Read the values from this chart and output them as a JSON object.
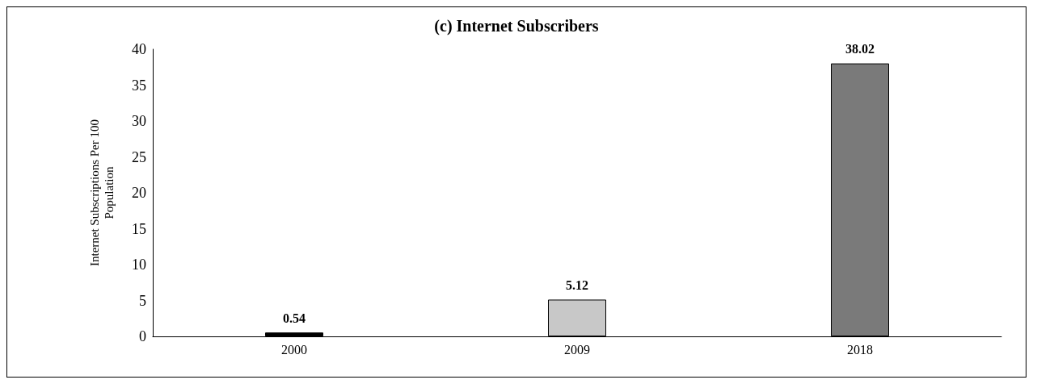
{
  "chart_data": {
    "type": "bar",
    "title": "(c) Internet Subscribers",
    "ylabel": "Internet Subscriptions Per 100\nPopulation",
    "categories": [
      "2000",
      "2009",
      "2018"
    ],
    "values": [
      0.54,
      5.12,
      38.02
    ],
    "colors": [
      "#000000",
      "#c8c8c8",
      "#7a7a7a"
    ],
    "ylim": [
      0,
      40
    ],
    "yticks": [
      0,
      5,
      10,
      15,
      20,
      25,
      30,
      35,
      40
    ],
    "grid": false,
    "data_labels": true
  }
}
